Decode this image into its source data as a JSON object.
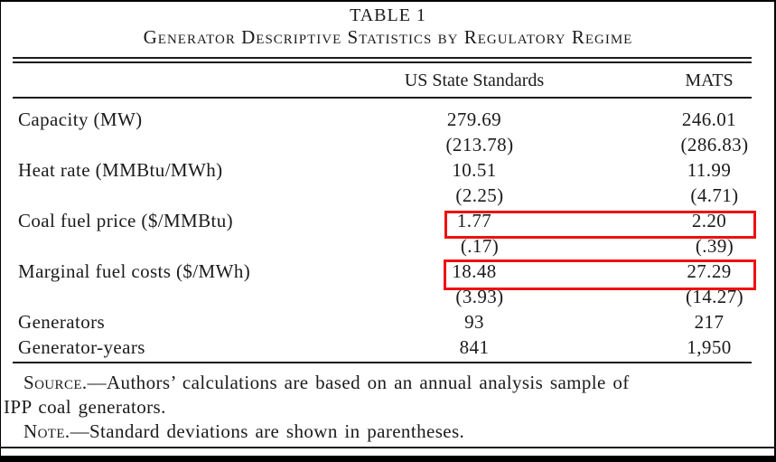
{
  "table": {
    "title": "TABLE 1",
    "subtitle": "Generator Descriptive Statistics by Regulatory Regime",
    "columns": [
      "US State Standards",
      "MATS"
    ],
    "rows": [
      {
        "label": "Capacity (MW)",
        "us": "279.69",
        "mats": "246.01"
      },
      {
        "label": "",
        "us": "(213.78)",
        "mats": "(286.83)"
      },
      {
        "label": "Heat rate (MMBtu/MWh)",
        "us": "10.51",
        "mats": "11.99"
      },
      {
        "label": "",
        "us": "(2.25)",
        "mats": "(4.71)"
      },
      {
        "label": "Coal fuel price ($/MMBtu)",
        "us": "1.77",
        "mats": "2.20"
      },
      {
        "label": "",
        "us": "(.17)",
        "mats": "(.39)"
      },
      {
        "label": "Marginal fuel costs ($/MWh)",
        "us": "18.48",
        "mats": "27.29"
      },
      {
        "label": "",
        "us": "(3.93)",
        "mats": "(14.27)"
      },
      {
        "label": "Generators",
        "us": "93",
        "mats": "217"
      },
      {
        "label": "Generator-years",
        "us": "841",
        "mats": "1,950"
      }
    ]
  },
  "highlights": [
    {
      "row": "Coal fuel price ($/MMBtu)",
      "values": [
        "1.77",
        "2.20"
      ],
      "color": "#ee1111"
    },
    {
      "row": "Marginal fuel costs ($/MWh)",
      "values": [
        "18.48",
        "27.29"
      ],
      "color": "#ee1111"
    }
  ],
  "notes": {
    "source_label": "Source.",
    "source_line1": "—Authors’ calculations are based on an annual analysis sample of",
    "source_line2": "IPP coal generators.",
    "note_label": "Note.",
    "note_text": "—Standard deviations are shown in parentheses."
  }
}
